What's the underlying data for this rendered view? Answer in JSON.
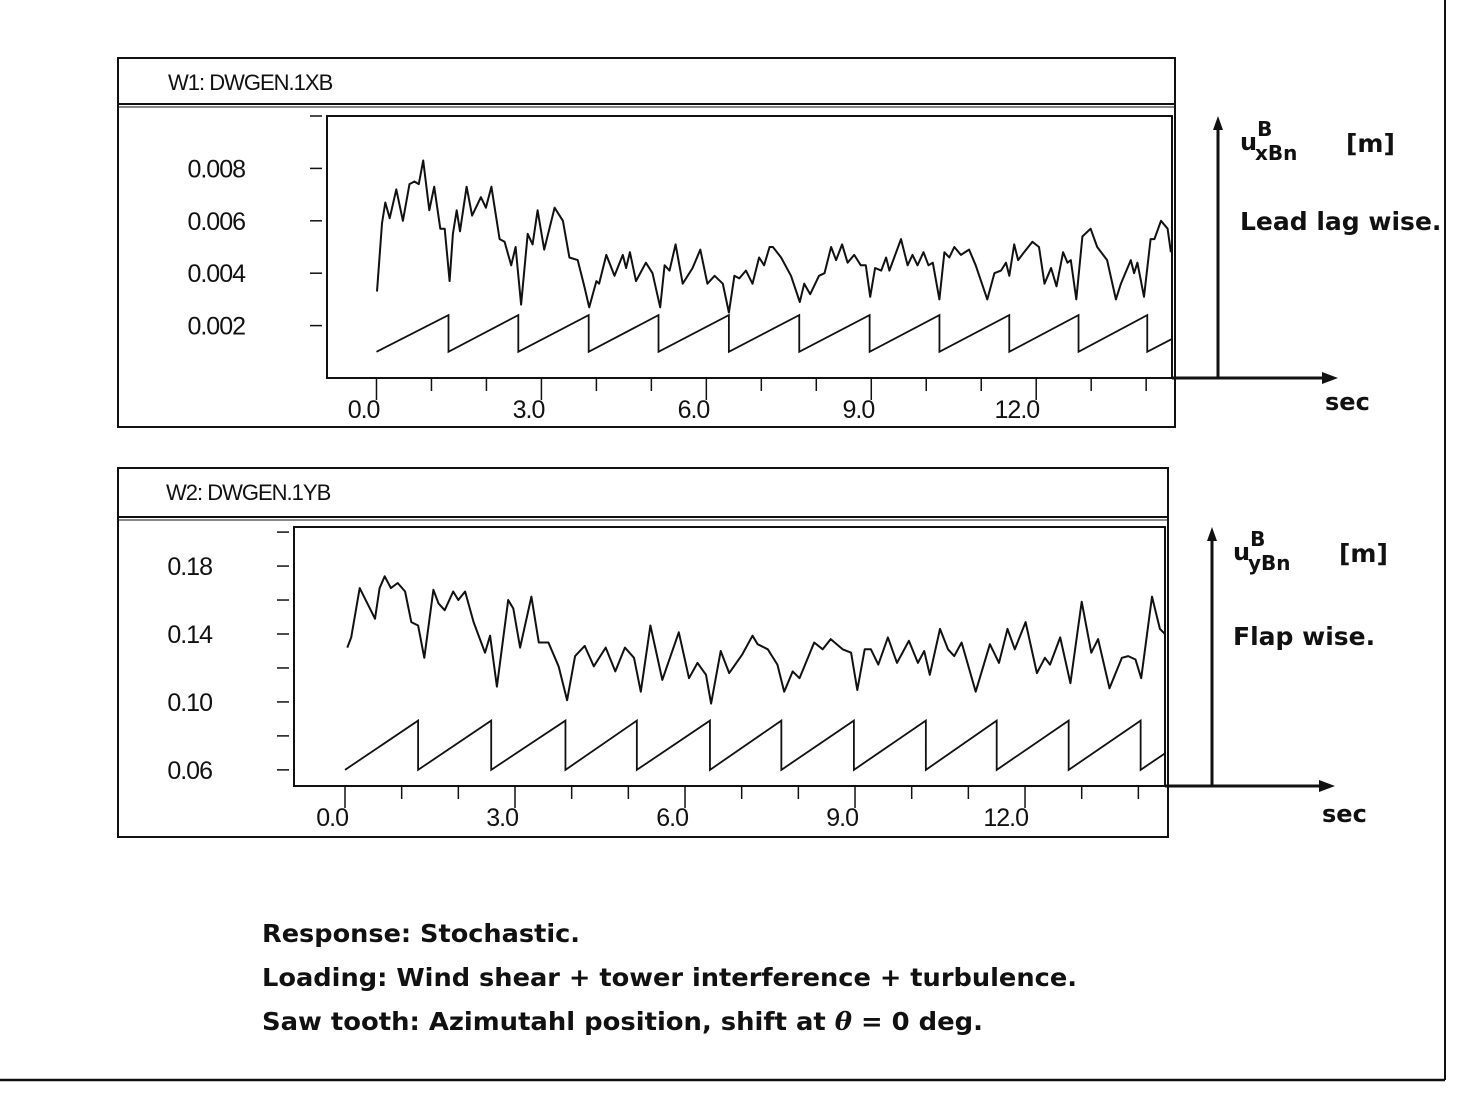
{
  "chart_data": [
    {
      "type": "line",
      "title": "W1:  DWGEN.1XB",
      "xlabel": "sec",
      "ylabel": {
        "symbol": "u",
        "sup": "B",
        "sub": "xBn",
        "unit": "[m]"
      },
      "annotation": "Lead lag wise.",
      "xlim": [
        -0.9,
        14.47
      ],
      "ylim": [
        0,
        0.01
      ],
      "grid": false,
      "xticks": [
        0,
        1,
        2,
        3,
        4,
        5,
        6,
        7,
        8,
        9,
        10,
        11,
        12,
        13,
        14
      ],
      "xtick_labels": [
        {
          "value": 0,
          "label": "0.0"
        },
        {
          "value": 3,
          "label": "3.0"
        },
        {
          "value": 6,
          "label": "6.0"
        },
        {
          "value": 9,
          "label": "9.0"
        },
        {
          "value": 12,
          "label": "12.0"
        }
      ],
      "yticks": [
        0.002,
        0.004,
        0.006,
        0.008,
        0.01
      ],
      "ytick_labels": [
        {
          "value": 0.002,
          "label": "0.002"
        },
        {
          "value": 0.004,
          "label": "0.004"
        },
        {
          "value": 0.006,
          "label": "0.006"
        },
        {
          "value": 0.008,
          "label": "0.008"
        }
      ],
      "series": [
        {
          "points": [
            [
              0.01,
              0.0033
            ],
            [
              0.1,
              0.0059
            ],
            [
              0.16,
              0.0067
            ],
            [
              0.24,
              0.0061
            ],
            [
              0.36,
              0.0072
            ],
            [
              0.48,
              0.006
            ],
            [
              0.6,
              0.0074
            ],
            [
              0.69,
              0.0075
            ],
            [
              0.77,
              0.0074
            ],
            [
              0.85,
              0.0083
            ],
            [
              0.96,
              0.0064
            ],
            [
              1.05,
              0.0073
            ],
            [
              1.16,
              0.0057
            ],
            [
              1.24,
              0.0057
            ],
            [
              1.33,
              0.0037
            ],
            [
              1.39,
              0.0055
            ],
            [
              1.46,
              0.0064
            ],
            [
              1.52,
              0.0056
            ],
            [
              1.64,
              0.0073
            ],
            [
              1.74,
              0.0062
            ],
            [
              1.9,
              0.0069
            ],
            [
              1.99,
              0.0065
            ],
            [
              2.09,
              0.0073
            ],
            [
              2.24,
              0.0053
            ],
            [
              2.33,
              0.0052
            ],
            [
              2.45,
              0.0043
            ],
            [
              2.53,
              0.005
            ],
            [
              2.63,
              0.0028
            ],
            [
              2.75,
              0.0055
            ],
            [
              2.84,
              0.0051
            ],
            [
              2.93,
              0.0064
            ],
            [
              3.05,
              0.0049
            ],
            [
              3.24,
              0.0065
            ],
            [
              3.39,
              0.006
            ],
            [
              3.51,
              0.0046
            ],
            [
              3.66,
              0.0045
            ],
            [
              3.78,
              0.0035
            ],
            [
              3.87,
              0.0027
            ],
            [
              4.0,
              0.0037
            ],
            [
              4.05,
              0.0036
            ],
            [
              4.18,
              0.0047
            ],
            [
              4.33,
              0.0039
            ],
            [
              4.48,
              0.0047
            ],
            [
              4.54,
              0.0042
            ],
            [
              4.61,
              0.0048
            ],
            [
              4.72,
              0.0037
            ],
            [
              4.9,
              0.0044
            ],
            [
              5.02,
              0.004
            ],
            [
              5.16,
              0.0027
            ],
            [
              5.24,
              0.0043
            ],
            [
              5.33,
              0.0041
            ],
            [
              5.44,
              0.0051
            ],
            [
              5.57,
              0.0036
            ],
            [
              5.75,
              0.0042
            ],
            [
              5.89,
              0.0049
            ],
            [
              6.02,
              0.0036
            ],
            [
              6.15,
              0.0039
            ],
            [
              6.3,
              0.0036
            ],
            [
              6.41,
              0.0025
            ],
            [
              6.51,
              0.0039
            ],
            [
              6.6,
              0.0038
            ],
            [
              6.72,
              0.0041
            ],
            [
              6.84,
              0.0036
            ],
            [
              6.96,
              0.0046
            ],
            [
              7.05,
              0.0043
            ],
            [
              7.15,
              0.005
            ],
            [
              7.21,
              0.005
            ],
            [
              7.36,
              0.0046
            ],
            [
              7.54,
              0.0039
            ],
            [
              7.7,
              0.0029
            ],
            [
              7.78,
              0.0036
            ],
            [
              7.89,
              0.0032
            ],
            [
              8.05,
              0.0039
            ],
            [
              8.15,
              0.004
            ],
            [
              8.27,
              0.005
            ],
            [
              8.36,
              0.0045
            ],
            [
              8.47,
              0.0051
            ],
            [
              8.57,
              0.0044
            ],
            [
              8.69,
              0.0047
            ],
            [
              8.81,
              0.0043
            ],
            [
              8.9,
              0.0043
            ],
            [
              8.98,
              0.0031
            ],
            [
              9.07,
              0.0042
            ],
            [
              9.18,
              0.0041
            ],
            [
              9.27,
              0.0046
            ],
            [
              9.33,
              0.0041
            ],
            [
              9.54,
              0.0053
            ],
            [
              9.66,
              0.0043
            ],
            [
              9.75,
              0.0047
            ],
            [
              9.84,
              0.0043
            ],
            [
              9.95,
              0.0048
            ],
            [
              10.04,
              0.0043
            ],
            [
              10.12,
              0.0044
            ],
            [
              10.24,
              0.003
            ],
            [
              10.33,
              0.0048
            ],
            [
              10.42,
              0.0046
            ],
            [
              10.51,
              0.005
            ],
            [
              10.63,
              0.0047
            ],
            [
              10.78,
              0.0049
            ],
            [
              10.9,
              0.0043
            ],
            [
              11.11,
              0.003
            ],
            [
              11.24,
              0.004
            ],
            [
              11.36,
              0.0041
            ],
            [
              11.45,
              0.0044
            ],
            [
              11.51,
              0.0039
            ],
            [
              11.6,
              0.0051
            ],
            [
              11.67,
              0.0045
            ],
            [
              11.78,
              0.0048
            ],
            [
              11.93,
              0.0052
            ],
            [
              12.05,
              0.005
            ],
            [
              12.15,
              0.0036
            ],
            [
              12.27,
              0.0042
            ],
            [
              12.37,
              0.0035
            ],
            [
              12.49,
              0.0048
            ],
            [
              12.57,
              0.0044
            ],
            [
              12.63,
              0.0045
            ],
            [
              12.73,
              0.003
            ],
            [
              12.84,
              0.0054
            ],
            [
              12.99,
              0.0057
            ],
            [
              13.11,
              0.005
            ],
            [
              13.29,
              0.0045
            ],
            [
              13.45,
              0.003
            ],
            [
              13.54,
              0.0036
            ],
            [
              13.72,
              0.0045
            ],
            [
              13.78,
              0.004
            ],
            [
              13.84,
              0.0044
            ],
            [
              13.96,
              0.0031
            ],
            [
              14.08,
              0.0053
            ],
            [
              14.15,
              0.0053
            ],
            [
              14.27,
              0.006
            ],
            [
              14.39,
              0.0057
            ],
            [
              14.45,
              0.0048
            ]
          ]
        }
      ],
      "sawtooth": {
        "min": 0.001,
        "max": 0.0024,
        "period": 1.28,
        "drop_times": [
          1.31,
          2.58,
          3.86,
          5.13,
          6.41,
          7.69,
          8.97,
          10.24,
          11.51,
          12.77,
          14.02
        ]
      }
    },
    {
      "type": "line",
      "title": "W2:  DWGEN.1YB",
      "xlabel": "sec",
      "ylabel": {
        "symbol": "u",
        "sup": "B",
        "sub": "yBn",
        "unit": "[m]"
      },
      "annotation": "Flap wise.",
      "xlim": [
        -0.9,
        14.47
      ],
      "ylim": [
        0.0505,
        0.203
      ],
      "grid": false,
      "xticks": [
        0,
        1,
        2,
        3,
        4,
        5,
        6,
        7,
        8,
        9,
        10,
        11,
        12,
        13,
        14
      ],
      "xtick_labels": [
        {
          "value": 0,
          "label": "0.0"
        },
        {
          "value": 3,
          "label": "3.0"
        },
        {
          "value": 6,
          "label": "6.0"
        },
        {
          "value": 9,
          "label": "9.0"
        },
        {
          "value": 12,
          "label": "12.0"
        }
      ],
      "yticks": [
        0.06,
        0.08,
        0.1,
        0.12,
        0.14,
        0.16,
        0.18,
        0.2
      ],
      "ytick_labels": [
        {
          "value": 0.06,
          "label": "0.06"
        },
        {
          "value": 0.1,
          "label": "0.10"
        },
        {
          "value": 0.14,
          "label": "0.14"
        },
        {
          "value": 0.18,
          "label": "0.18"
        }
      ],
      "series": [
        {
          "points": [
            [
              0.04,
              0.132
            ],
            [
              0.11,
              0.138
            ],
            [
              0.26,
              0.167
            ],
            [
              0.41,
              0.157
            ],
            [
              0.53,
              0.149
            ],
            [
              0.61,
              0.167
            ],
            [
              0.7,
              0.174
            ],
            [
              0.81,
              0.167
            ],
            [
              0.93,
              0.17
            ],
            [
              1.06,
              0.165
            ],
            [
              1.17,
              0.147
            ],
            [
              1.29,
              0.145
            ],
            [
              1.4,
              0.126
            ],
            [
              1.56,
              0.166
            ],
            [
              1.65,
              0.158
            ],
            [
              1.76,
              0.154
            ],
            [
              1.91,
              0.165
            ],
            [
              2.0,
              0.16
            ],
            [
              2.12,
              0.165
            ],
            [
              2.27,
              0.147
            ],
            [
              2.47,
              0.129
            ],
            [
              2.56,
              0.139
            ],
            [
              2.68,
              0.109
            ],
            [
              2.88,
              0.16
            ],
            [
              2.97,
              0.155
            ],
            [
              3.09,
              0.132
            ],
            [
              3.29,
              0.162
            ],
            [
              3.42,
              0.135
            ],
            [
              3.59,
              0.135
            ],
            [
              3.77,
              0.121
            ],
            [
              3.92,
              0.101
            ],
            [
              4.06,
              0.127
            ],
            [
              4.23,
              0.133
            ],
            [
              4.39,
              0.121
            ],
            [
              4.6,
              0.132
            ],
            [
              4.77,
              0.118
            ],
            [
              4.94,
              0.132
            ],
            [
              5.1,
              0.126
            ],
            [
              5.22,
              0.106
            ],
            [
              5.39,
              0.145
            ],
            [
              5.6,
              0.113
            ],
            [
              5.89,
              0.141
            ],
            [
              6.07,
              0.114
            ],
            [
              6.22,
              0.123
            ],
            [
              6.37,
              0.116
            ],
            [
              6.46,
              0.099
            ],
            [
              6.63,
              0.13
            ],
            [
              6.78,
              0.117
            ],
            [
              7.01,
              0.128
            ],
            [
              7.19,
              0.139
            ],
            [
              7.28,
              0.134
            ],
            [
              7.46,
              0.131
            ],
            [
              7.63,
              0.122
            ],
            [
              7.75,
              0.106
            ],
            [
              7.9,
              0.118
            ],
            [
              8.02,
              0.114
            ],
            [
              8.28,
              0.135
            ],
            [
              8.43,
              0.131
            ],
            [
              8.57,
              0.137
            ],
            [
              8.78,
              0.131
            ],
            [
              8.93,
              0.129
            ],
            [
              9.04,
              0.107
            ],
            [
              9.17,
              0.131
            ],
            [
              9.28,
              0.131
            ],
            [
              9.41,
              0.122
            ],
            [
              9.58,
              0.138
            ],
            [
              9.74,
              0.123
            ],
            [
              9.95,
              0.136
            ],
            [
              10.11,
              0.123
            ],
            [
              10.22,
              0.13
            ],
            [
              10.32,
              0.116
            ],
            [
              10.5,
              0.143
            ],
            [
              10.64,
              0.131
            ],
            [
              10.75,
              0.127
            ],
            [
              10.88,
              0.135
            ],
            [
              11.13,
              0.106
            ],
            [
              11.38,
              0.134
            ],
            [
              11.54,
              0.123
            ],
            [
              11.69,
              0.143
            ],
            [
              11.82,
              0.131
            ],
            [
              12.01,
              0.147
            ],
            [
              12.21,
              0.117
            ],
            [
              12.35,
              0.126
            ],
            [
              12.44,
              0.122
            ],
            [
              12.62,
              0.138
            ],
            [
              12.8,
              0.111
            ],
            [
              13.0,
              0.159
            ],
            [
              13.17,
              0.129
            ],
            [
              13.29,
              0.137
            ],
            [
              13.49,
              0.108
            ],
            [
              13.71,
              0.126
            ],
            [
              13.82,
              0.127
            ],
            [
              13.95,
              0.125
            ],
            [
              14.05,
              0.114
            ],
            [
              14.24,
              0.162
            ],
            [
              14.38,
              0.143
            ],
            [
              14.47,
              0.14
            ]
          ]
        }
      ],
      "sawtooth": {
        "min": 0.06,
        "max": 0.089,
        "period": 1.28,
        "drop_times": [
          1.29,
          2.58,
          3.89,
          5.15,
          6.44,
          7.7,
          8.98,
          10.25,
          11.5,
          12.77,
          14.04
        ]
      }
    }
  ],
  "caption": {
    "line1": "Response: Stochastic.",
    "line2": "Loading: Wind shear + tower interference + turbulence.",
    "line3_pre": "Saw tooth: Azimutahl position, shift at ",
    "line3_symbol": "θ",
    "line3_post": " = 0 deg."
  },
  "colors": {
    "ink": "#111111",
    "background": "#ffffff"
  }
}
